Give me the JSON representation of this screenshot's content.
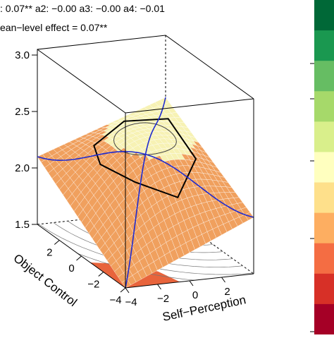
{
  "header": {
    "coefficients_line": ": 0.07**   a2: −0.00   a3: −0.00   a4: −0.01",
    "mean_effect_line": "ean−level effect = 0.07**"
  },
  "chart_data": {
    "type": "surface",
    "title": "",
    "xlabel": "Self−Perception",
    "ylabel": "Object Control",
    "zlabel": "",
    "x_ticks": [
      "−4",
      "−2",
      "0",
      "2"
    ],
    "y_ticks": [
      "−4",
      "−2",
      "0",
      "2"
    ],
    "z_ticks": [
      "1.5",
      "2.0",
      "2.5",
      "3.0"
    ],
    "z_range": [
      1.5,
      3.0
    ],
    "grid": true,
    "legend": "right color scale (green high → red low)",
    "coefficients": {
      "a1": "0.07**",
      "a2": "−0.00",
      "a3": "−0.00",
      "a4": "−0.01"
    },
    "surface_corners": [
      {
        "self_perception": -4,
        "object_control": -4,
        "z": 1.5
      },
      {
        "self_perception": -4,
        "object_control": 4,
        "z": 2.1
      },
      {
        "self_perception": 4,
        "object_control": -4,
        "z": 2.0
      },
      {
        "self_perception": 4,
        "object_control": 4,
        "z": 2.5
      }
    ],
    "color_scale": [
      "#006837",
      "#1a9850",
      "#66bd63",
      "#a6d96a",
      "#d9ef8b",
      "#ffffbf",
      "#fee08b",
      "#fdae61",
      "#f46d43",
      "#d73027",
      "#a50026"
    ],
    "surface_colors": {
      "high": "#f7f2b4",
      "low": "#f0a05e",
      "floor_low": "#e8643c"
    }
  }
}
